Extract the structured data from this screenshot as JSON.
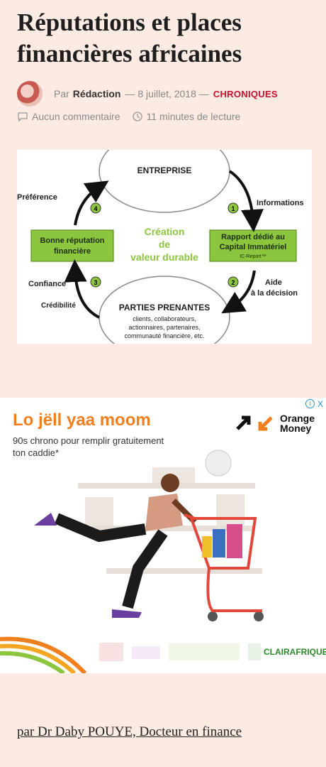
{
  "article": {
    "title": "Réputations et places financières africaines",
    "author_prefix": "Par",
    "author": "Rédaction",
    "date": "— 8 juillet, 2018 —",
    "category": "CHRONIQUES",
    "comments": "Aucun commentaire",
    "read_time": "11 minutes de lecture",
    "byline": "par Dr Daby POUYE, Docteur en finance"
  },
  "diagram": {
    "top": "ENTREPRISE",
    "center": [
      "Création",
      "de",
      "valeur durable"
    ],
    "left_box": [
      "Bonne réputation",
      "financière"
    ],
    "right_box": [
      "Rapport dédié au",
      "Capital Immatériel"
    ],
    "right_box_sub": "IC-Report™",
    "bottom_title": "PARTIES PRENANTES",
    "bottom_lines": [
      "clients, collaborateurs,",
      "actionnaires, partenaires,",
      "communauté financière, etc."
    ],
    "label_1": "Informations",
    "label_2a": "Aide",
    "label_2b": "à la décision",
    "label_3a": "Confiance",
    "label_3b": "Crédibilité",
    "label_4": "Préférence",
    "num_1": "1",
    "num_2": "2",
    "num_3": "3",
    "num_4": "4"
  },
  "ad": {
    "headline": "Lo jëll yaa moom",
    "subtitle": "90s chrono pour remplir gratuitement ton caddie*",
    "brand_line1": "Orange",
    "brand_line2": "Money",
    "info_icon": "i",
    "close_icon": "X",
    "partners": [
      "CLAIRAFRIQUE"
    ],
    "accent": "#f07f1e"
  }
}
